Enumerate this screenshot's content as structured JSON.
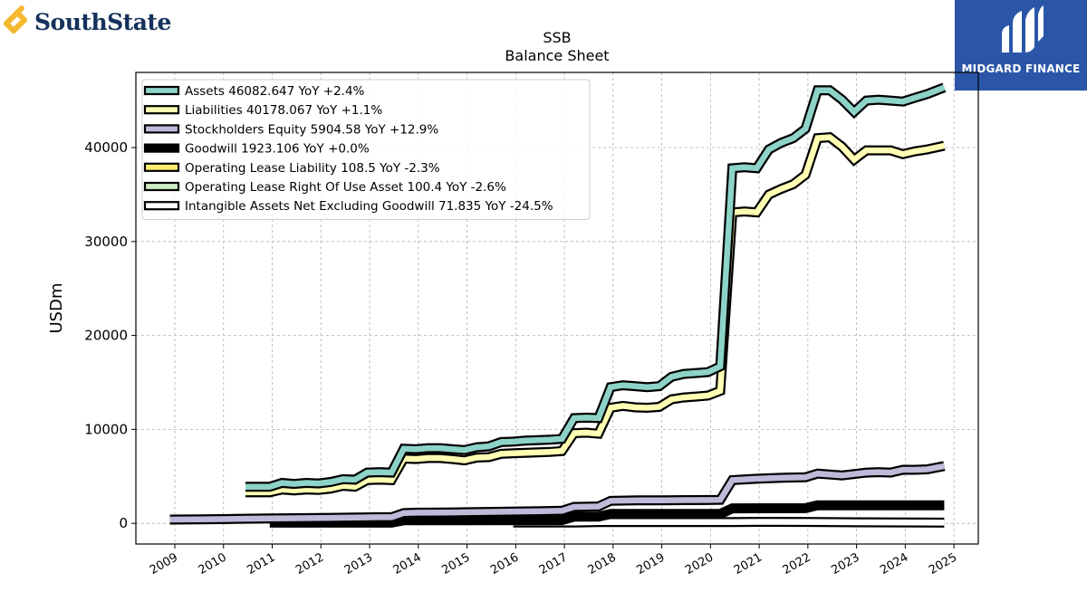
{
  "branding": {
    "left_logo": "SouthState",
    "right_logo": "MIDGARD FINANCE"
  },
  "colors": {
    "assets": "#8dd3c7",
    "liabilities": "#ffffb3",
    "stockholders_equity": "#bebada",
    "goodwill": "#000000",
    "operating_lease_liability": "#ffed6f",
    "operating_lease_rou_asset": "#ccebc5",
    "intangible_assets": "#ffffff",
    "southstate_blue": "#15315b",
    "southstate_gold": "#f5b82e",
    "midgard_blue": "#2b56a8"
  },
  "chart_data": {
    "type": "line",
    "title": "SSB",
    "subtitle": "Balance  Sheet",
    "ylabel": "USDm",
    "xlabel": "",
    "ylim": [
      -2200,
      48000
    ],
    "xlim": [
      2008.2,
      2025.5
    ],
    "y_ticks": [
      "0",
      "10000",
      "20000",
      "30000",
      "40000"
    ],
    "x_ticks": [
      "2009",
      "2010",
      "2011",
      "2012",
      "2013",
      "2014",
      "2015",
      "2016",
      "2017",
      "2018",
      "2019",
      "2020",
      "2021",
      "2022",
      "2023",
      "2024",
      "2025"
    ],
    "grid": true,
    "legend_position": "top-left",
    "series": [
      {
        "name": "Assets  46082.647 YoY +2.4%",
        "color_key": "assets",
        "points": [
          [
            2010.45,
            3900
          ],
          [
            2010.95,
            3900
          ],
          [
            2011.2,
            4300
          ],
          [
            2011.45,
            4200
          ],
          [
            2011.7,
            4300
          ],
          [
            2011.95,
            4250
          ],
          [
            2012.2,
            4400
          ],
          [
            2012.45,
            4700
          ],
          [
            2012.7,
            4650
          ],
          [
            2012.95,
            5400
          ],
          [
            2013.2,
            5450
          ],
          [
            2013.45,
            5400
          ],
          [
            2013.7,
            7950
          ],
          [
            2013.95,
            7900
          ],
          [
            2014.2,
            8000
          ],
          [
            2014.45,
            8000
          ],
          [
            2014.7,
            7900
          ],
          [
            2014.95,
            7800
          ],
          [
            2015.2,
            8100
          ],
          [
            2015.45,
            8200
          ],
          [
            2015.7,
            8650
          ],
          [
            2015.95,
            8700
          ],
          [
            2016.2,
            8800
          ],
          [
            2016.45,
            8850
          ],
          [
            2016.7,
            8900
          ],
          [
            2016.95,
            9000
          ],
          [
            2017.2,
            11200
          ],
          [
            2017.45,
            11250
          ],
          [
            2017.7,
            11200
          ],
          [
            2017.95,
            14500
          ],
          [
            2018.2,
            14700
          ],
          [
            2018.45,
            14600
          ],
          [
            2018.7,
            14500
          ],
          [
            2018.95,
            14600
          ],
          [
            2019.2,
            15600
          ],
          [
            2019.45,
            15900
          ],
          [
            2019.7,
            16000
          ],
          [
            2019.95,
            16100
          ],
          [
            2020.2,
            16700
          ],
          [
            2020.45,
            37800
          ],
          [
            2020.7,
            37900
          ],
          [
            2020.95,
            37800
          ],
          [
            2021.2,
            39800
          ],
          [
            2021.45,
            40500
          ],
          [
            2021.7,
            41000
          ],
          [
            2021.95,
            42000
          ],
          [
            2022.2,
            46100
          ],
          [
            2022.45,
            46100
          ],
          [
            2022.7,
            45100
          ],
          [
            2022.95,
            43800
          ],
          [
            2023.2,
            45000
          ],
          [
            2023.45,
            45100
          ],
          [
            2023.7,
            45000
          ],
          [
            2023.95,
            44900
          ],
          [
            2024.2,
            45300
          ],
          [
            2024.45,
            45700
          ],
          [
            2024.8,
            46400
          ]
        ]
      },
      {
        "name": "Liabilities  40178.067 YoY +1.1%",
        "color_key": "liabilities",
        "points": [
          [
            2010.45,
            3300
          ],
          [
            2010.95,
            3300
          ],
          [
            2011.2,
            3600
          ],
          [
            2011.45,
            3500
          ],
          [
            2011.7,
            3600
          ],
          [
            2011.95,
            3550
          ],
          [
            2012.2,
            3700
          ],
          [
            2012.45,
            4000
          ],
          [
            2012.7,
            3900
          ],
          [
            2012.95,
            4600
          ],
          [
            2013.2,
            4650
          ],
          [
            2013.45,
            4600
          ],
          [
            2013.7,
            6900
          ],
          [
            2013.95,
            6850
          ],
          [
            2014.2,
            6950
          ],
          [
            2014.45,
            6950
          ],
          [
            2014.7,
            6850
          ],
          [
            2014.95,
            6700
          ],
          [
            2015.2,
            7000
          ],
          [
            2015.45,
            7050
          ],
          [
            2015.7,
            7400
          ],
          [
            2015.95,
            7450
          ],
          [
            2016.2,
            7500
          ],
          [
            2016.45,
            7550
          ],
          [
            2016.7,
            7600
          ],
          [
            2016.95,
            7700
          ],
          [
            2017.2,
            9600
          ],
          [
            2017.45,
            9650
          ],
          [
            2017.7,
            9550
          ],
          [
            2017.95,
            12300
          ],
          [
            2018.2,
            12500
          ],
          [
            2018.45,
            12350
          ],
          [
            2018.7,
            12300
          ],
          [
            2018.95,
            12400
          ],
          [
            2019.2,
            13200
          ],
          [
            2019.45,
            13400
          ],
          [
            2019.7,
            13500
          ],
          [
            2019.95,
            13600
          ],
          [
            2020.2,
            14100
          ],
          [
            2020.45,
            33100
          ],
          [
            2020.7,
            33200
          ],
          [
            2020.95,
            33100
          ],
          [
            2021.2,
            35000
          ],
          [
            2021.45,
            35600
          ],
          [
            2021.7,
            36100
          ],
          [
            2021.95,
            37100
          ],
          [
            2022.2,
            41000
          ],
          [
            2022.45,
            41100
          ],
          [
            2022.7,
            40100
          ],
          [
            2022.95,
            38700
          ],
          [
            2023.2,
            39700
          ],
          [
            2023.45,
            39700
          ],
          [
            2023.7,
            39700
          ],
          [
            2023.95,
            39300
          ],
          [
            2024.2,
            39600
          ],
          [
            2024.45,
            39800
          ],
          [
            2024.8,
            40200
          ]
        ]
      },
      {
        "name": "Stockholders Equity  5904.58 YoY +12.9%",
        "color_key": "stockholders_equity",
        "points": [
          [
            2008.9,
            400
          ],
          [
            2009.5,
            420
          ],
          [
            2010.2,
            470
          ],
          [
            2010.95,
            520
          ],
          [
            2011.5,
            550
          ],
          [
            2012.2,
            580
          ],
          [
            2012.7,
            620
          ],
          [
            2013.2,
            650
          ],
          [
            2013.45,
            650
          ],
          [
            2013.7,
            1100
          ],
          [
            2013.95,
            1130
          ],
          [
            2014.5,
            1150
          ],
          [
            2015.0,
            1180
          ],
          [
            2015.5,
            1220
          ],
          [
            2016.0,
            1260
          ],
          [
            2016.5,
            1300
          ],
          [
            2016.95,
            1350
          ],
          [
            2017.2,
            1750
          ],
          [
            2017.7,
            1800
          ],
          [
            2017.95,
            2400
          ],
          [
            2018.5,
            2450
          ],
          [
            2019.0,
            2450
          ],
          [
            2019.5,
            2470
          ],
          [
            2019.95,
            2480
          ],
          [
            2020.2,
            2500
          ],
          [
            2020.45,
            4600
          ],
          [
            2020.95,
            4750
          ],
          [
            2021.5,
            4850
          ],
          [
            2021.95,
            4900
          ],
          [
            2022.2,
            5300
          ],
          [
            2022.45,
            5200
          ],
          [
            2022.7,
            5100
          ],
          [
            2022.95,
            5250
          ],
          [
            2023.2,
            5400
          ],
          [
            2023.45,
            5450
          ],
          [
            2023.7,
            5400
          ],
          [
            2023.95,
            5700
          ],
          [
            2024.2,
            5700
          ],
          [
            2024.45,
            5750
          ],
          [
            2024.8,
            6100
          ]
        ]
      },
      {
        "name": "Goodwill  1923.106 YoY +0.0%",
        "color_key": "goodwill",
        "points": [
          [
            2010.95,
            70
          ],
          [
            2013.45,
            70
          ],
          [
            2013.7,
            320
          ],
          [
            2016.95,
            340
          ],
          [
            2017.2,
            720
          ],
          [
            2017.7,
            720
          ],
          [
            2017.95,
            1000
          ],
          [
            2020.2,
            1000
          ],
          [
            2020.45,
            1600
          ],
          [
            2021.95,
            1620
          ],
          [
            2022.2,
            1920
          ],
          [
            2024.8,
            1923
          ]
        ]
      },
      {
        "name": "Operating Lease Liability  108.5 YoY -2.3%",
        "color_key": "operating_lease_liability",
        "points": []
      },
      {
        "name": "Operating Lease Right Of Use Asset  100.4 YoY -2.6%",
        "color_key": "operating_lease_rou_asset",
        "points": []
      },
      {
        "name": "Intangible Assets Net Excluding Goodwill  71.835 YoY -24.5%",
        "color_key": "intangible_assets",
        "points": [
          [
            2015.95,
            80
          ],
          [
            2017.2,
            80
          ],
          [
            2017.7,
            130
          ],
          [
            2020.45,
            130
          ],
          [
            2021.0,
            160
          ],
          [
            2022.0,
            150
          ],
          [
            2023.0,
            110
          ],
          [
            2024.8,
            72
          ]
        ]
      }
    ]
  }
}
